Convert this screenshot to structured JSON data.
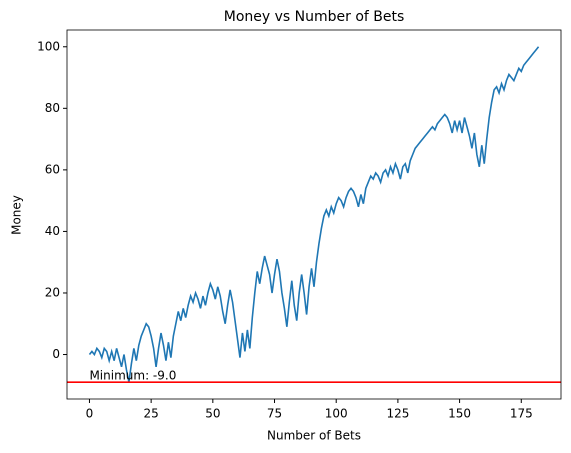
{
  "chart_data": {
    "type": "line",
    "title": "Money vs Number of Bets",
    "xlabel": "Number of Bets",
    "ylabel": "Money",
    "series": [
      {
        "name": "Money",
        "color": "#1f77b4",
        "values": [
          0,
          1,
          0,
          2,
          1,
          -1,
          2,
          1,
          -2,
          1,
          -2,
          2,
          -1,
          -4,
          0,
          -5,
          -9,
          -3,
          2,
          -2,
          3,
          6,
          8,
          10,
          9,
          6,
          2,
          -4,
          2,
          7,
          3,
          -2,
          4,
          -1,
          6,
          10,
          14,
          11,
          15,
          12,
          16,
          19,
          17,
          20,
          18,
          15,
          19,
          16,
          20,
          23,
          21,
          18,
          22,
          19,
          14,
          10,
          16,
          21,
          17,
          11,
          5,
          -1,
          7,
          1,
          8,
          2,
          12,
          20,
          27,
          23,
          28,
          32,
          29,
          26,
          20,
          26,
          31,
          27,
          20,
          15,
          9,
          17,
          24,
          16,
          11,
          20,
          26,
          20,
          13,
          22,
          28,
          22,
          30,
          36,
          41,
          45,
          47,
          45,
          48,
          46,
          49,
          51,
          50,
          48,
          51,
          53,
          54,
          53,
          51,
          48,
          52,
          49,
          54,
          56,
          58,
          57,
          59,
          58,
          56,
          59,
          60,
          58,
          61,
          59,
          62,
          60,
          57,
          61,
          62,
          59,
          63,
          65,
          67,
          68,
          69,
          70,
          71,
          72,
          73,
          74,
          73,
          75,
          76,
          77,
          78,
          77,
          75,
          72,
          76,
          73,
          76,
          72,
          77,
          74,
          71,
          67,
          72,
          65,
          61,
          68,
          62,
          70,
          77,
          82,
          86,
          87,
          85,
          88,
          86,
          89,
          91,
          90,
          89,
          91,
          93,
          92,
          94,
          95,
          96,
          97,
          98,
          99,
          100
        ]
      }
    ],
    "hline": {
      "value": -9,
      "color": "#ff0000",
      "label": "Minimum: -9.0"
    },
    "xlim": [
      -9.1,
      191.1
    ],
    "xticks": [
      0,
      25,
      50,
      75,
      100,
      125,
      150,
      175
    ],
    "ylim": [
      -14.45,
      105.45
    ],
    "yticks": [
      0,
      20,
      40,
      60,
      80,
      100
    ],
    "grid": false
  }
}
